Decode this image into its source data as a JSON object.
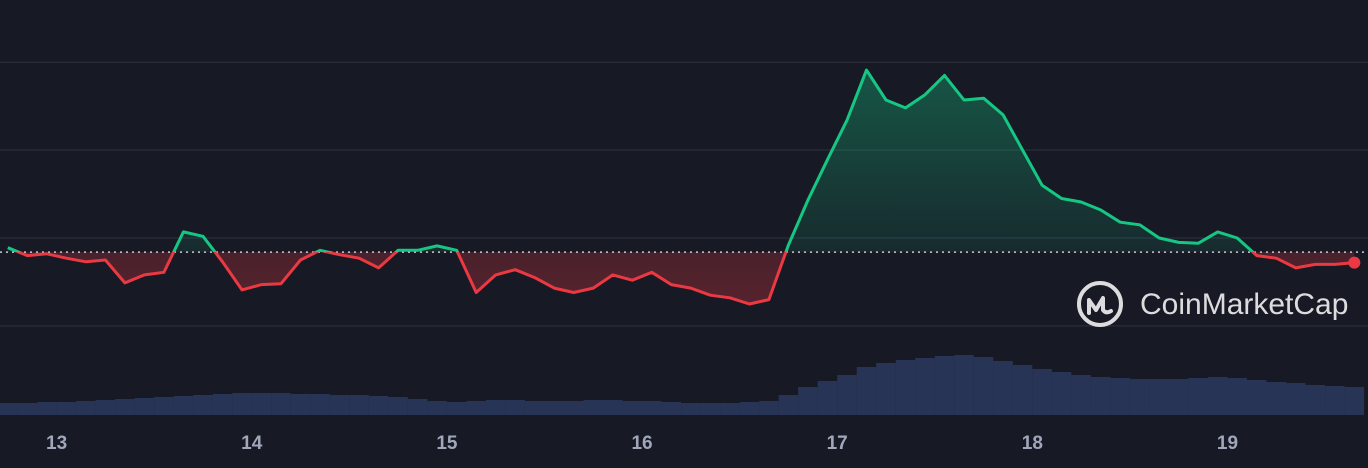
{
  "chart_data": {
    "type": "line",
    "brand": "CoinMarketCap",
    "x": [
      12.75,
      12.85,
      12.95,
      13.05,
      13.15,
      13.25,
      13.35,
      13.45,
      13.55,
      13.65,
      13.75,
      13.85,
      13.95,
      14.05,
      14.15,
      14.25,
      14.35,
      14.45,
      14.55,
      14.65,
      14.75,
      14.85,
      14.95,
      15.05,
      15.15,
      15.25,
      15.35,
      15.45,
      15.55,
      15.65,
      15.75,
      15.85,
      15.95,
      16.05,
      16.15,
      16.25,
      16.35,
      16.45,
      16.55,
      16.65,
      16.75,
      16.85,
      16.95,
      17.05,
      17.15,
      17.25,
      17.35,
      17.45,
      17.55,
      17.65,
      17.75,
      17.85,
      17.95,
      18.05,
      18.15,
      18.25,
      18.35,
      18.45,
      18.55,
      18.65,
      18.75,
      18.85,
      18.95,
      19.05,
      19.15,
      19.25,
      19.35,
      19.45,
      19.55,
      19.65
    ],
    "values": [
      1.89,
      1.8,
      1.82,
      1.77,
      1.73,
      1.75,
      1.49,
      1.58,
      1.61,
      2.07,
      2.02,
      1.73,
      1.41,
      1.47,
      1.48,
      1.75,
      1.86,
      1.81,
      1.77,
      1.66,
      1.86,
      1.86,
      1.91,
      1.86,
      1.38,
      1.58,
      1.64,
      1.55,
      1.43,
      1.38,
      1.43,
      1.58,
      1.52,
      1.61,
      1.47,
      1.43,
      1.35,
      1.32,
      1.25,
      1.3,
      1.92,
      2.43,
      2.89,
      3.34,
      3.91,
      3.57,
      3.48,
      3.63,
      3.85,
      3.57,
      3.59,
      3.4,
      3.0,
      2.6,
      2.45,
      2.41,
      2.32,
      2.18,
      2.15,
      2.0,
      1.95,
      1.94,
      2.07,
      2.0,
      1.8,
      1.77,
      1.66,
      1.7,
      1.7,
      1.72
    ],
    "volume": [
      12,
      12,
      13,
      13,
      14,
      15,
      16,
      17,
      18,
      19,
      20,
      21,
      22,
      22,
      22,
      21,
      21,
      20,
      20,
      19,
      18,
      16,
      14,
      13,
      14,
      15,
      15,
      14,
      14,
      14,
      15,
      15,
      14,
      14,
      13,
      12,
      12,
      12,
      13,
      14,
      20,
      28,
      34,
      40,
      48,
      52,
      55,
      57,
      59,
      60,
      58,
      54,
      50,
      46,
      43,
      40,
      38,
      37,
      36,
      36,
      36,
      37,
      38,
      37,
      35,
      33,
      32,
      30,
      29,
      28
    ],
    "volume_lim": [
      0,
      75
    ],
    "reference": 1.84,
    "up_color": "#16c784",
    "down_color": "#ea3943",
    "volume_color": "#2b3a5e",
    "xlim": [
      12.71,
      19.72
    ],
    "xticks": [
      13,
      14,
      15,
      16,
      17,
      18,
      19
    ],
    "ylim": [
      0.84,
      4.48
    ],
    "gridlines": [
      1,
      2,
      3,
      4
    ],
    "grid": true
  }
}
